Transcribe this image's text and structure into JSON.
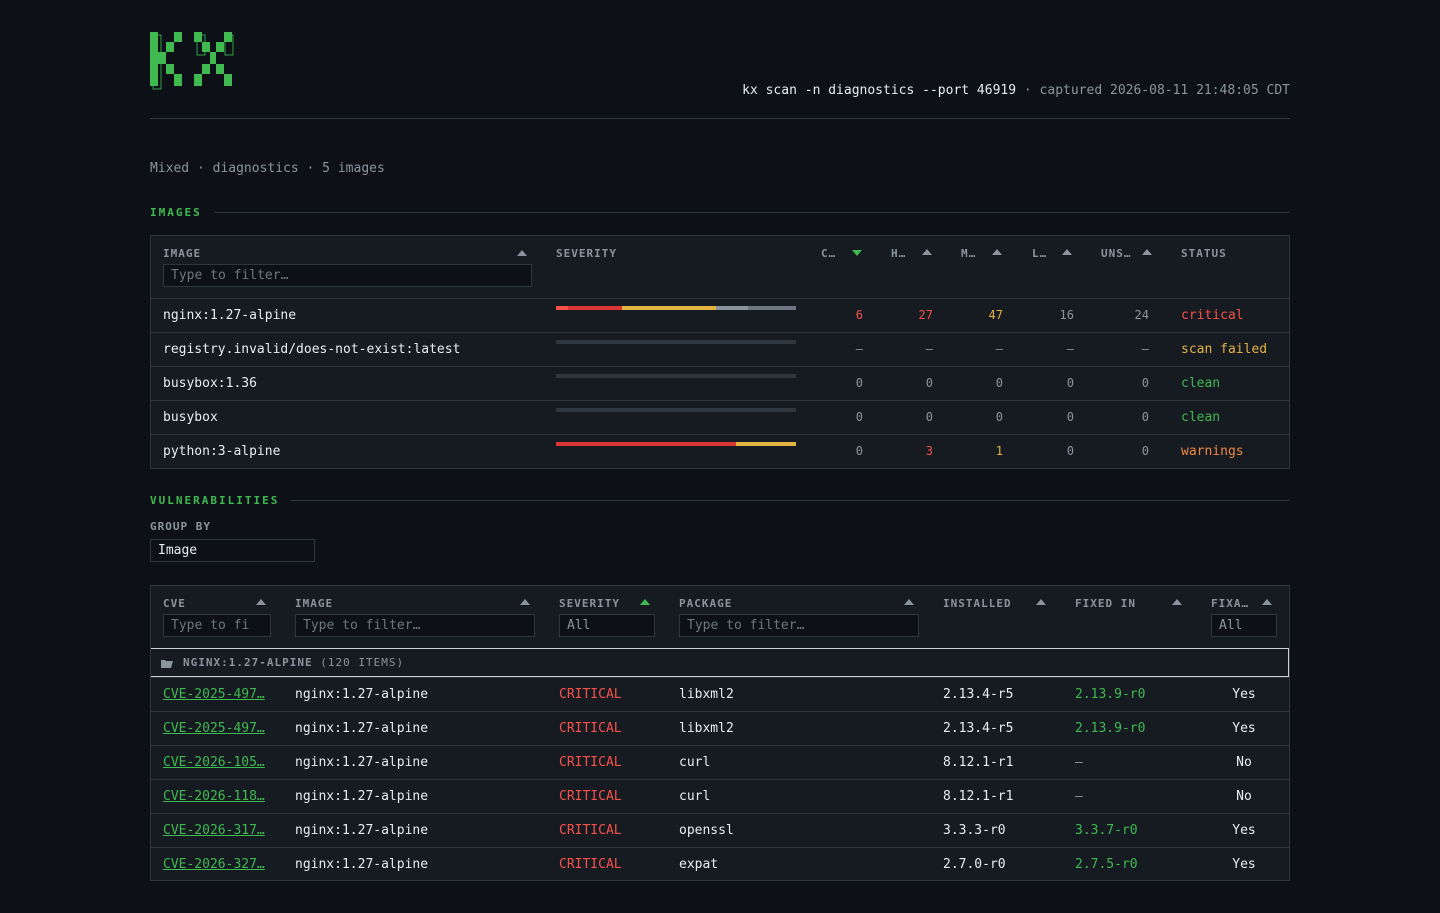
{
  "header": {
    "command": "kx scan -n diagnostics --port 46919",
    "separator": " · ",
    "captured": "captured 2026-08-11 21:48:05 CDT"
  },
  "subtitle": "Mixed · diagnostics · 5 images",
  "images_section": {
    "title": "IMAGES",
    "columns": {
      "image": "IMAGE",
      "severity": "SEVERITY",
      "critical": "C…",
      "high": "H…",
      "medium": "M…",
      "low": "L…",
      "unspecified": "UNS…",
      "status": "STATUS"
    },
    "filter_placeholder": "Type to filter…",
    "rows": [
      {
        "image": "nginx:1.27-alpine",
        "critical": "6",
        "high": "27",
        "medium": "47",
        "low": "16",
        "unspecified": "24",
        "status": "critical",
        "bar": [
          6,
          27,
          47,
          16,
          24
        ]
      },
      {
        "image": "registry.invalid/does-not-exist:latest",
        "critical": "–",
        "high": "–",
        "medium": "–",
        "low": "–",
        "unspecified": "–",
        "status": "scan failed",
        "bar": []
      },
      {
        "image": "busybox:1.36",
        "critical": "0",
        "high": "0",
        "medium": "0",
        "low": "0",
        "unspecified": "0",
        "status": "clean",
        "bar": []
      },
      {
        "image": "busybox",
        "critical": "0",
        "high": "0",
        "medium": "0",
        "low": "0",
        "unspecified": "0",
        "status": "clean",
        "bar": []
      },
      {
        "image": "python:3-alpine",
        "critical": "0",
        "high": "3",
        "medium": "1",
        "low": "0",
        "unspecified": "0",
        "status": "warnings",
        "bar": [
          0,
          3,
          1,
          0,
          0
        ]
      }
    ]
  },
  "vuln_section": {
    "title": "VULNERABILITIES",
    "group_by_label": "GROUP BY",
    "group_by_value": "Image",
    "columns": {
      "cve": "CVE",
      "image": "IMAGE",
      "severity": "SEVERITY",
      "package": "PACKAGE",
      "installed": "INSTALLED",
      "fixed_in": "FIXED IN",
      "fixable": "FIXA…"
    },
    "cve_filter_placeholder": "Type to fi",
    "image_filter_placeholder": "Type to filter…",
    "package_filter_placeholder": "Type to filter…",
    "severity_select": "All",
    "fixable_select": "All",
    "group": {
      "name": "NGINX:1.27-ALPINE",
      "count": "(120 ITEMS)"
    },
    "rows": [
      {
        "cve": "CVE-2025-497…",
        "image": "nginx:1.27-alpine",
        "severity": "CRITICAL",
        "package": "libxml2",
        "installed": "2.13.4-r5",
        "fixed_in": "2.13.9-r0",
        "fixable": "Yes"
      },
      {
        "cve": "CVE-2025-497…",
        "image": "nginx:1.27-alpine",
        "severity": "CRITICAL",
        "package": "libxml2",
        "installed": "2.13.4-r5",
        "fixed_in": "2.13.9-r0",
        "fixable": "Yes"
      },
      {
        "cve": "CVE-2026-105…",
        "image": "nginx:1.27-alpine",
        "severity": "CRITICAL",
        "package": "curl",
        "installed": "8.12.1-r1",
        "fixed_in": "–",
        "fixable": "No"
      },
      {
        "cve": "CVE-2026-118…",
        "image": "nginx:1.27-alpine",
        "severity": "CRITICAL",
        "package": "curl",
        "installed": "8.12.1-r1",
        "fixed_in": "–",
        "fixable": "No"
      },
      {
        "cve": "CVE-2026-317…",
        "image": "nginx:1.27-alpine",
        "severity": "CRITICAL",
        "package": "openssl",
        "installed": "3.3.3-r0",
        "fixed_in": "3.3.7-r0",
        "fixable": "Yes"
      },
      {
        "cve": "CVE-2026-327…",
        "image": "nginx:1.27-alpine",
        "severity": "CRITICAL",
        "package": "expat",
        "installed": "2.7.0-r0",
        "fixed_in": "2.7.5-r0",
        "fixable": "Yes"
      }
    ]
  },
  "colors": {
    "background": "#0d1117",
    "panel": "#161b22",
    "accent": "#3fb950",
    "critical": "#f85149",
    "high": "#da3633",
    "medium": "#e3b341",
    "low": "#8b949e",
    "warning": "#f0883e"
  }
}
